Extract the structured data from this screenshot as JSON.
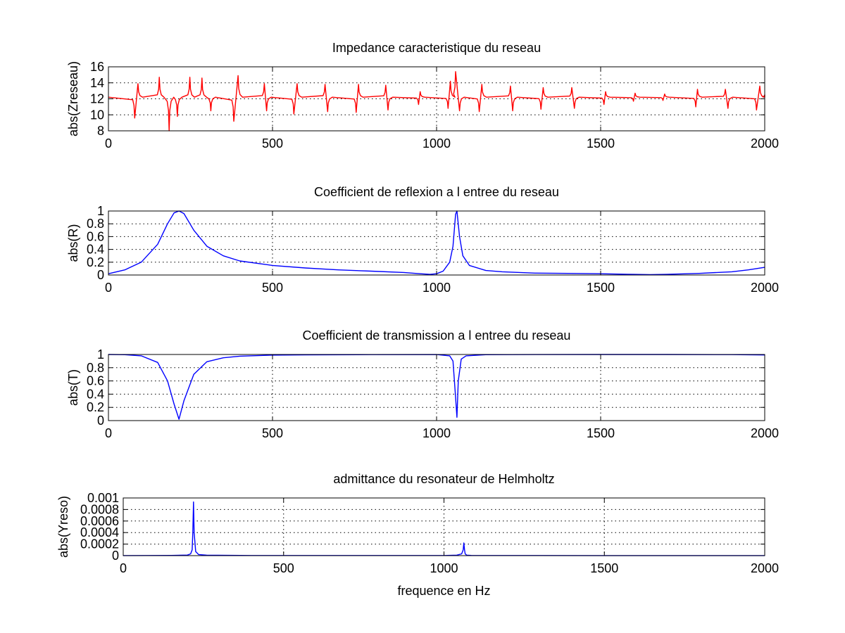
{
  "chart_data": [
    {
      "type": "line",
      "title": "Impedance caracteristique du reseau",
      "xlabel": "",
      "ylabel": "abs(Zreseau)",
      "xlim": [
        0,
        2000
      ],
      "ylim": [
        8,
        16
      ],
      "grid": true,
      "xticks": [
        0,
        500,
        1000,
        1500,
        2000
      ],
      "xtick_labels": [
        "0",
        "500",
        "1000",
        "1500",
        "2000"
      ],
      "yticks": [
        8,
        10,
        12,
        14,
        16
      ],
      "ytick_labels": [
        "8",
        "10",
        "12",
        "14",
        "16"
      ],
      "color": "#ff0000",
      "series": [
        {
          "values_description": "baseline ~12.2 with sharp spikes",
          "baseline": 12.2,
          "spikes": [
            {
              "x": 80,
              "y": 9.6
            },
            {
              "x": 90,
              "y": 13.9
            },
            {
              "x": 155,
              "y": 14.7
            },
            {
              "x": 185,
              "y": 8.0
            },
            {
              "x": 210,
              "y": 9.8
            },
            {
              "x": 248,
              "y": 14.7
            },
            {
              "x": 285,
              "y": 14.6
            },
            {
              "x": 312,
              "y": 10.5
            },
            {
              "x": 382,
              "y": 9.2
            },
            {
              "x": 395,
              "y": 14.9
            },
            {
              "x": 475,
              "y": 13.9
            },
            {
              "x": 482,
              "y": 10.5
            },
            {
              "x": 565,
              "y": 10.1
            },
            {
              "x": 575,
              "y": 13.9
            },
            {
              "x": 660,
              "y": 13.8
            },
            {
              "x": 668,
              "y": 10.4
            },
            {
              "x": 755,
              "y": 10.3
            },
            {
              "x": 762,
              "y": 13.8
            },
            {
              "x": 845,
              "y": 13.7
            },
            {
              "x": 852,
              "y": 10.6
            },
            {
              "x": 945,
              "y": 11.3
            },
            {
              "x": 950,
              "y": 12.9
            },
            {
              "x": 1035,
              "y": 10.8
            },
            {
              "x": 1042,
              "y": 14.2
            },
            {
              "x": 1058,
              "y": 15.4
            },
            {
              "x": 1070,
              "y": 10.5
            },
            {
              "x": 1130,
              "y": 10.4
            },
            {
              "x": 1138,
              "y": 13.8
            },
            {
              "x": 1225,
              "y": 13.6
            },
            {
              "x": 1232,
              "y": 10.5
            },
            {
              "x": 1318,
              "y": 10.7
            },
            {
              "x": 1325,
              "y": 13.4
            },
            {
              "x": 1412,
              "y": 13.4
            },
            {
              "x": 1420,
              "y": 10.8
            },
            {
              "x": 1510,
              "y": 11.3
            },
            {
              "x": 1515,
              "y": 12.9
            },
            {
              "x": 1600,
              "y": 11.7
            },
            {
              "x": 1605,
              "y": 12.7
            },
            {
              "x": 1690,
              "y": 11.8
            },
            {
              "x": 1695,
              "y": 12.6
            },
            {
              "x": 1790,
              "y": 11.0
            },
            {
              "x": 1795,
              "y": 13.2
            },
            {
              "x": 1880,
              "y": 13.2
            },
            {
              "x": 1888,
              "y": 10.8
            },
            {
              "x": 1975,
              "y": 10.6
            },
            {
              "x": 1985,
              "y": 13.6
            },
            {
              "x": 2000,
              "y": 12.5
            }
          ]
        }
      ]
    },
    {
      "type": "line",
      "title": "Coefficient de reflexion a l entree du reseau",
      "xlabel": "",
      "ylabel": "abs(R)",
      "xlim": [
        0,
        2000
      ],
      "ylim": [
        0,
        1
      ],
      "grid": true,
      "xticks": [
        0,
        500,
        1000,
        1500,
        2000
      ],
      "xtick_labels": [
        "0",
        "500",
        "1000",
        "1500",
        "2000"
      ],
      "yticks": [
        0,
        0.2,
        0.4,
        0.6,
        0.8,
        1
      ],
      "ytick_labels": [
        "0",
        "0.2",
        "0.4",
        "0.6",
        "0.8",
        "1"
      ],
      "color": "#0000ff",
      "series": [
        {
          "x": [
            0,
            50,
            100,
            150,
            180,
            200,
            215,
            230,
            260,
            300,
            350,
            400,
            500,
            600,
            700,
            800,
            900,
            950,
            980,
            1000,
            1020,
            1040,
            1050,
            1058,
            1062,
            1070,
            1080,
            1100,
            1150,
            1200,
            1300,
            1400,
            1500,
            1600,
            1650,
            1700,
            1800,
            1900,
            1950,
            2000
          ],
          "y": [
            0.02,
            0.08,
            0.2,
            0.48,
            0.8,
            0.97,
            1.0,
            0.96,
            0.7,
            0.45,
            0.3,
            0.22,
            0.15,
            0.11,
            0.08,
            0.06,
            0.04,
            0.02,
            0.01,
            0.02,
            0.06,
            0.2,
            0.45,
            0.95,
            1.0,
            0.6,
            0.3,
            0.15,
            0.07,
            0.05,
            0.03,
            0.025,
            0.02,
            0.01,
            0.005,
            0.01,
            0.025,
            0.05,
            0.08,
            0.12
          ]
        }
      ]
    },
    {
      "type": "line",
      "title": "Coefficient de transmission a l entree du reseau",
      "xlabel": "",
      "ylabel": "abs(T)",
      "xlim": [
        0,
        2000
      ],
      "ylim": [
        0,
        1
      ],
      "grid": true,
      "xticks": [
        0,
        500,
        1000,
        1500,
        2000
      ],
      "xtick_labels": [
        "0",
        "500",
        "1000",
        "1500",
        "2000"
      ],
      "yticks": [
        0,
        0.2,
        0.4,
        0.6,
        0.8,
        1
      ],
      "ytick_labels": [
        "0",
        "0.2",
        "0.4",
        "0.6",
        "0.8",
        "1"
      ],
      "color": "#0000ff",
      "series": [
        {
          "x": [
            0,
            50,
            100,
            150,
            180,
            200,
            215,
            230,
            260,
            300,
            350,
            400,
            500,
            600,
            800,
            1000,
            1040,
            1050,
            1058,
            1062,
            1066,
            1075,
            1090,
            1150,
            1300,
            1500,
            1700,
            1900,
            2000
          ],
          "y": [
            1.0,
            0.997,
            0.98,
            0.88,
            0.6,
            0.25,
            0.02,
            0.3,
            0.7,
            0.89,
            0.95,
            0.975,
            0.99,
            0.994,
            0.998,
            0.999,
            0.98,
            0.9,
            0.35,
            0.05,
            0.6,
            0.93,
            0.98,
            0.997,
            0.999,
            1.0,
            1.0,
            0.998,
            0.993
          ]
        }
      ]
    },
    {
      "type": "line",
      "title": "admittance du resonateur de Helmholtz",
      "xlabel": "frequence en Hz",
      "ylabel": "abs(Yreso)",
      "xlim": [
        0,
        2000
      ],
      "ylim": [
        0,
        0.001
      ],
      "grid": true,
      "xticks": [
        0,
        500,
        1000,
        1500,
        2000
      ],
      "xtick_labels": [
        "0",
        "500",
        "1000",
        "1500",
        "2000"
      ],
      "yticks": [
        0,
        0.0002,
        0.0004,
        0.0006,
        0.0008,
        0.001
      ],
      "ytick_labels": [
        "0",
        "0.0002",
        "0.0004",
        "0.0006",
        "0.0008",
        "0.001"
      ],
      "color": "#0000ff",
      "series": [
        {
          "x": [
            0,
            150,
            200,
            210,
            215,
            217,
            219,
            221,
            226,
            235,
            260,
            400,
            600,
            800,
            1000,
            1040,
            1055,
            1060,
            1062,
            1064,
            1066,
            1071,
            1085,
            1200,
            1500,
            2000
          ],
          "y": [
            1e-06,
            4e-06,
            1e-05,
            3e-05,
            0.0001,
            0.0004,
            0.00093,
            0.0004,
            7e-05,
            2e-05,
            8e-06,
            3e-06,
            2e-06,
            2e-06,
            3e-06,
            8e-06,
            3e-05,
            0.0001,
            0.00022,
            0.0001,
            3e-05,
            8e-06,
            4e-06,
            2e-06,
            1e-06,
            1e-06
          ]
        }
      ]
    }
  ]
}
